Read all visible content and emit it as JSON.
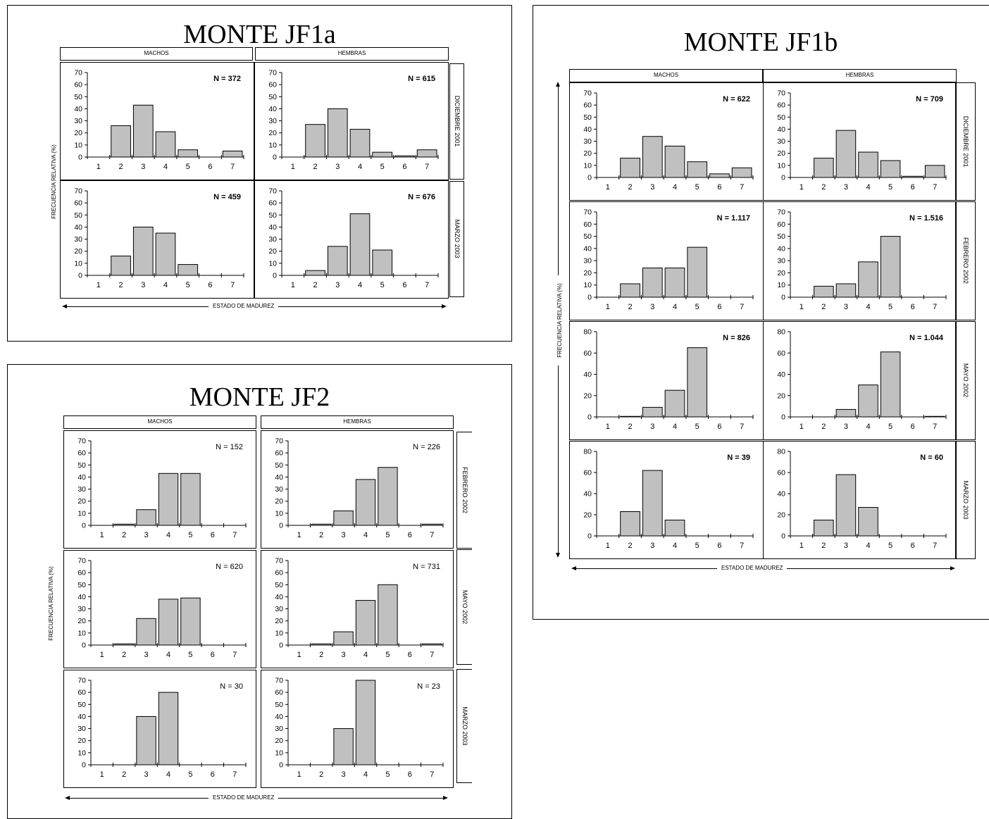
{
  "common": {
    "header_male": "MACHOS",
    "header_female": "HEMBRAS",
    "y_label": "FRECUENCIA RELATIVA  (%)",
    "x_label": "ESTADO DE MADUREZ",
    "bar_color": "#c0c0c0"
  },
  "chart_data": [
    {
      "type": "bar",
      "title": "MONTE JF1a",
      "categories": [
        1,
        2,
        3,
        4,
        5,
        6,
        7
      ],
      "xlabel": "ESTADO DE MADUREZ",
      "ylabel": "FRECUENCIA RELATIVA  (%)",
      "grid": false,
      "rows": [
        {
          "period": "DICIEMBRE  2001",
          "ylim": [
            0,
            70
          ],
          "yticks": [
            0,
            10,
            20,
            30,
            40,
            50,
            60,
            70
          ],
          "machos": {
            "n": "N = 372",
            "values": [
              0,
              26,
              43,
              21,
              6,
              0,
              5
            ]
          },
          "hembras": {
            "n": "N = 615",
            "values": [
              0,
              27,
              40,
              23,
              4,
              1,
              6
            ]
          }
        },
        {
          "period": "MARZO 2003",
          "ylim": [
            0,
            70
          ],
          "yticks": [
            0,
            10,
            20,
            30,
            40,
            50,
            60,
            70
          ],
          "machos": {
            "n": "N = 459",
            "values": [
              0,
              16,
              40,
              35,
              9,
              0,
              0
            ]
          },
          "hembras": {
            "n": "N = 676",
            "values": [
              0,
              4,
              24,
              51,
              21,
              0,
              0
            ]
          }
        }
      ]
    },
    {
      "type": "bar",
      "title": "MONTE JF2",
      "categories": [
        1,
        2,
        3,
        4,
        5,
        6,
        7
      ],
      "xlabel": "ESTADO DE MADUREZ",
      "ylabel": "FRECUENCIA RELATIVA  (%)",
      "grid": false,
      "rows": [
        {
          "period": "FEBRERO 2002",
          "ylim": [
            0,
            70
          ],
          "yticks": [
            0,
            10,
            20,
            30,
            40,
            50,
            60,
            70
          ],
          "machos": {
            "n": "N = 152",
            "values": [
              0,
              1,
              13,
              43,
              43,
              0,
              0
            ]
          },
          "hembras": {
            "n": "N = 226",
            "values": [
              0,
              1,
              12,
              38,
              48,
              0,
              1
            ]
          }
        },
        {
          "period": "MAYO 2002",
          "ylim": [
            0,
            70
          ],
          "yticks": [
            0,
            10,
            20,
            30,
            40,
            50,
            60,
            70
          ],
          "machos": {
            "n": "N = 620",
            "values": [
              0,
              1,
              22,
              38,
              39,
              0,
              0
            ]
          },
          "hembras": {
            "n": "N = 731",
            "values": [
              0,
              1,
              11,
              37,
              50,
              0,
              1
            ]
          }
        },
        {
          "period": "MARZO 2003",
          "ylim": [
            0,
            70
          ],
          "yticks": [
            0,
            10,
            20,
            30,
            40,
            50,
            60,
            70
          ],
          "machos": {
            "n": "N = 30",
            "values": [
              0,
              0,
              40,
              60,
              0,
              0,
              0
            ]
          },
          "hembras": {
            "n": "N = 23",
            "values": [
              0,
              0,
              30,
              70,
              0,
              0,
              0
            ]
          }
        }
      ]
    },
    {
      "type": "bar",
      "title": "MONTE JF1b",
      "categories": [
        1,
        2,
        3,
        4,
        5,
        6,
        7
      ],
      "xlabel": "ESTADO DE MADUREZ",
      "ylabel": "FRECUENCIA RELATIVA  (%)",
      "grid": false,
      "rows": [
        {
          "period": "DICIEMBRE  2001",
          "ylim": [
            0,
            70
          ],
          "yticks": [
            0,
            10,
            20,
            30,
            40,
            50,
            60,
            70
          ],
          "machos": {
            "n": "N = 622",
            "values": [
              0,
              16,
              34,
              26,
              13,
              3,
              8
            ]
          },
          "hembras": {
            "n": "N = 709",
            "values": [
              0,
              16,
              39,
              21,
              14,
              1,
              10
            ]
          }
        },
        {
          "period": "FEBRERO  2002",
          "ylim": [
            0,
            70
          ],
          "yticks": [
            0,
            10,
            20,
            30,
            40,
            50,
            60,
            70
          ],
          "machos": {
            "n": "N = 1.117",
            "values": [
              0,
              11,
              24,
              24,
              41,
              0,
              0
            ]
          },
          "hembras": {
            "n": "N = 1.516",
            "values": [
              0,
              9,
              11,
              29,
              50,
              0,
              0
            ]
          }
        },
        {
          "period": "MAYO  2002",
          "ylim": [
            0,
            80
          ],
          "yticks": [
            0,
            20,
            40,
            60,
            80
          ],
          "machos": {
            "n": "N = 826",
            "values": [
              0,
              0.5,
              9,
              25,
              65,
              0,
              0
            ]
          },
          "hembras": {
            "n": "N = 1.044",
            "values": [
              0,
              0,
              7,
              30,
              61,
              0,
              0.5
            ]
          }
        },
        {
          "period": "MARZO  2003",
          "ylim": [
            0,
            80
          ],
          "yticks": [
            0,
            20,
            40,
            60,
            80
          ],
          "machos": {
            "n": "N = 39",
            "values": [
              0,
              23,
              62,
              15,
              0,
              0,
              0
            ]
          },
          "hembras": {
            "n": "N = 60",
            "values": [
              0,
              15,
              58,
              27,
              0,
              0,
              0
            ]
          }
        }
      ]
    }
  ]
}
